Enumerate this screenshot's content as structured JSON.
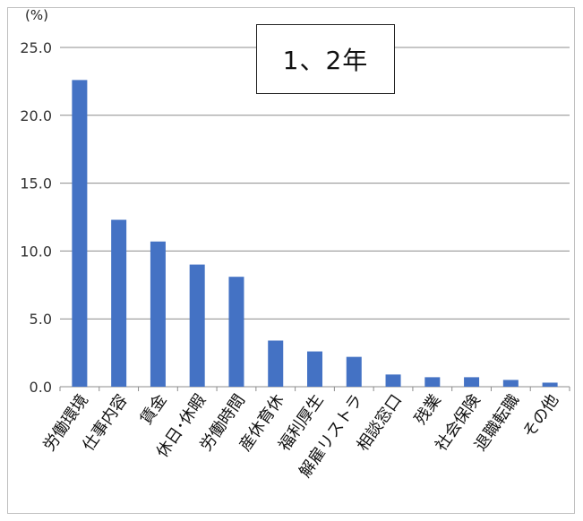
{
  "chart_data": {
    "type": "bar",
    "unit_label": "(%)",
    "annotation": "1、2年",
    "categories": [
      "労働環境",
      "仕事内容",
      "賃金",
      "休日･休暇",
      "労働時間",
      "産休育休",
      "福利厚生",
      "解雇リストラ",
      "相談窓口",
      "残業",
      "社会保険",
      "退職転職",
      "その他"
    ],
    "values": [
      22.6,
      12.3,
      10.7,
      9.0,
      8.1,
      3.4,
      2.6,
      2.2,
      0.9,
      0.7,
      0.7,
      0.5,
      0.3
    ],
    "ylim": [
      0,
      25
    ],
    "yticks": [
      "0.0",
      "5.0",
      "10.0",
      "15.0",
      "20.0",
      "25.0"
    ],
    "grid": true,
    "bar_color": "#4472c4",
    "grid_color": "#8c8c8c"
  }
}
